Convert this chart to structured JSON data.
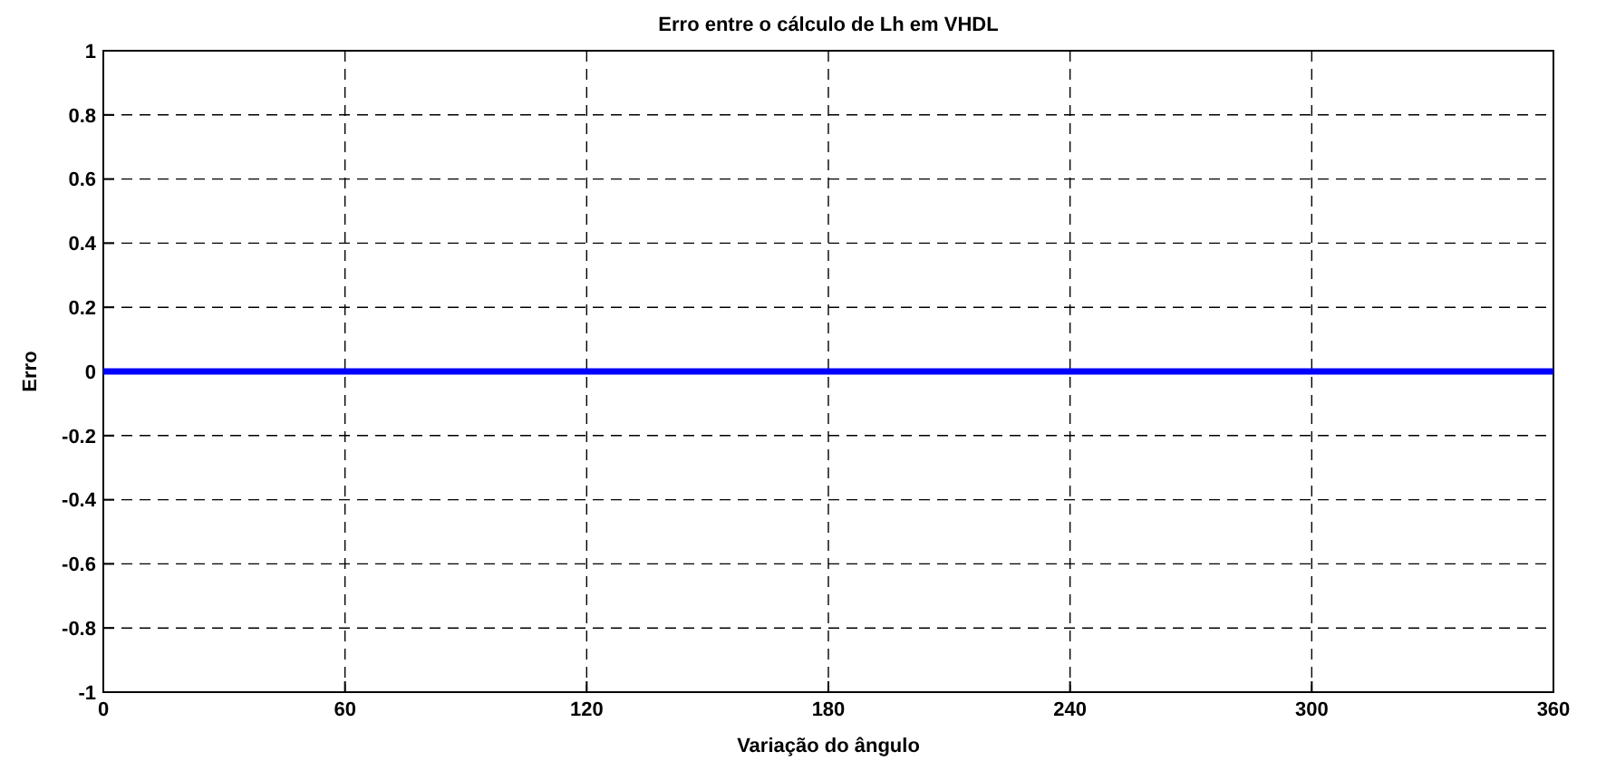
{
  "chart_data": {
    "type": "line",
    "title": "Erro entre o cálculo de Lh em VHDL",
    "xlabel": "Variação do ângulo",
    "ylabel": "Erro",
    "x": [
      0,
      360
    ],
    "series": [
      {
        "color": "#0000ff",
        "values": [
          0,
          0
        ]
      }
    ],
    "xlim": [
      0,
      360
    ],
    "xticks": [
      0,
      60,
      120,
      180,
      240,
      300,
      360
    ],
    "ylim": [
      -1,
      1
    ],
    "yticks": [
      -1,
      -0.8,
      -0.6,
      -0.4,
      -0.2,
      0,
      0.2,
      0.4,
      0.6,
      0.8,
      1
    ],
    "grid": true,
    "line_style": "solid"
  }
}
